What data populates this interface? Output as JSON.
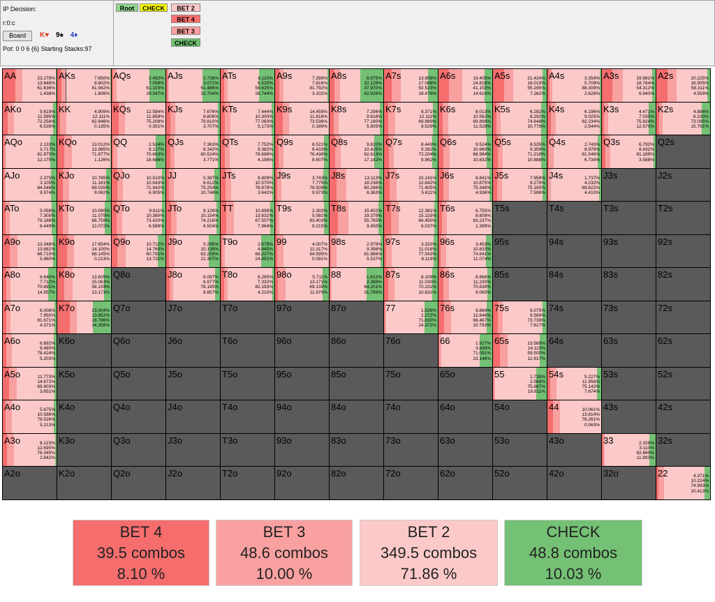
{
  "info": {
    "title": "IP Decision:",
    "node": "r:0:c",
    "board_label": "Board",
    "cards": [
      {
        "rank": "K",
        "suit": "♥",
        "color": "#e03a1c"
      },
      {
        "rank": "9",
        "suit": "♠",
        "color": "#000000"
      },
      {
        "rank": "4",
        "suit": "♦",
        "color": "#1c3fbf"
      }
    ],
    "pot_line": "Pot: 0 0 6 (6) Starting Stacks:97"
  },
  "tree": [
    {
      "label": "Root",
      "color": "#92d892"
    },
    {
      "label": "CHECK",
      "color": "#ffff00"
    },
    {
      "label": "BET 2",
      "color": "#fbc8c8"
    },
    {
      "label": "BET 4",
      "color": "#ff6f6f"
    },
    {
      "label": "BET 3",
      "color": "#ff9f9f"
    },
    {
      "label": "CHECK",
      "color": "#6cc36c"
    }
  ],
  "colors": {
    "bet4": "#f56d6d",
    "bet3": "#f9a0a0",
    "bet2": "#fcc9c9",
    "check": "#74c074",
    "empty": "#5a5a5a"
  },
  "grid_rows": [
    [
      "AA",
      "AKs",
      "AQs",
      "AJs",
      "ATs",
      "A9s",
      "A8s",
      "A7s",
      "A6s",
      "A5s",
      "A4s",
      "A3s",
      "A2s"
    ],
    [
      "AKo",
      "KK",
      "KQs",
      "KJs",
      "KTs",
      "K9s",
      "K8s",
      "K7s",
      "K6s",
      "K5s",
      "K4s",
      "K3s",
      "K2s"
    ],
    [
      "AQo",
      "KQo",
      "QQ",
      "QJs",
      "QTs",
      "Q9s",
      "Q8s",
      "Q7s",
      "Q6s",
      "Q5s",
      "Q4s",
      "Q3s",
      "Q2s"
    ],
    [
      "AJo",
      "KJo",
      "QJo",
      "JJ",
      "JTs",
      "J9s",
      "J8s",
      "J7s",
      "J6s",
      "J5s",
      "J4s",
      "J3s",
      "J2s"
    ],
    [
      "ATo",
      "KTo",
      "QTo",
      "JTo",
      "TT",
      "T9s",
      "T8s",
      "T7s",
      "T6s",
      "T5s",
      "T4s",
      "T3s",
      "T2s"
    ],
    [
      "A9o",
      "K9o",
      "Q9o",
      "J9o",
      "T9o",
      "99",
      "98s",
      "97s",
      "96s",
      "95s",
      "94s",
      "93s",
      "92s"
    ],
    [
      "A8o",
      "K8o",
      "Q8o",
      "J8o",
      "T8o",
      "98o",
      "88",
      "87s",
      "86s",
      "85s",
      "84s",
      "83s",
      "82s"
    ],
    [
      "A7o",
      "K7o",
      "Q7o",
      "J7o",
      "T7o",
      "97o",
      "87o",
      "77",
      "76s",
      "75s",
      "74s",
      "73s",
      "72s"
    ],
    [
      "A6o",
      "K6o",
      "Q6o",
      "J6o",
      "T6o",
      "96o",
      "86o",
      "76o",
      "66",
      "65s",
      "64s",
      "63s",
      "62s"
    ],
    [
      "A5o",
      "K5o",
      "Q5o",
      "J5o",
      "T5o",
      "95o",
      "85o",
      "75o",
      "65o",
      "55",
      "54s",
      "53s",
      "52s"
    ],
    [
      "A4o",
      "K4o",
      "Q4o",
      "J4o",
      "T4o",
      "94o",
      "84o",
      "74o",
      "64o",
      "54o",
      "44",
      "43s",
      "42s"
    ],
    [
      "A3o",
      "K3o",
      "Q3o",
      "J3o",
      "T3o",
      "93o",
      "83o",
      "73o",
      "63o",
      "53o",
      "43o",
      "33",
      "32s"
    ],
    [
      "A2o",
      "K2o",
      "Q2o",
      "J2o",
      "T2o",
      "92o",
      "82o",
      "72o",
      "62o",
      "52o",
      "42o",
      "32o",
      "22"
    ]
  ],
  "hands": {
    "AA": [
      "23.278%",
      "13.648%",
      "61.636%",
      "1.438%"
    ],
    "AKs": [
      "7.650%",
      "8.602%",
      "81.942%",
      "1.806%"
    ],
    "AQs": [
      "2.492%",
      "7.058%",
      "61.103%",
      "29.347%"
    ],
    "AJs": [
      "2.738%",
      "3.072%",
      "61.486%",
      "32.704%"
    ],
    "ATs": [
      "6.110%",
      "6.520%",
      "58.625%",
      "28.744%"
    ],
    "A9s": [
      "7.289%",
      "7.816%",
      "81.792%",
      "3.102%"
    ],
    "A8s": [
      "8.975%",
      "10.129%",
      "37.970%",
      "42.926%"
    ],
    "A7s": [
      "13.909%",
      "17.088%",
      "50.523%",
      "18.479%"
    ],
    "A6s": [
      "19.405%",
      "24.828%",
      "41.153%",
      "14.614%"
    ],
    "A5s": [
      "21.424%",
      "16.019%",
      "55.295%",
      "7.262%"
    ],
    "A4s": [
      "3.354%",
      "5.709%",
      "88.309%",
      "2.628%"
    ],
    "A3s": [
      "19.981%",
      "18.764%",
      "54.312%",
      "6.943%"
    ],
    "A2s": [
      "20.225%",
      "16.905%",
      "58.311%",
      "4.559%"
    ],
    "AKo": [
      "9.619%",
      "11.595%",
      "72.258%",
      "6.528%"
    ],
    "KK": [
      "4.909%",
      "12.111%",
      "82.846%",
      "0.135%"
    ],
    "KQs": [
      "12.584%",
      "11.858%",
      "75.208%",
      "0.351%"
    ],
    "KJs": [
      "7.676%",
      "8.808%",
      "79.810%",
      "3.707%"
    ],
    "KTs": [
      "7.444%",
      "10.300%",
      "77.083%",
      "5.173%"
    ],
    "K9s": [
      "14.459%",
      "11.816%",
      "73.536%",
      "0.189%"
    ],
    "K8s": [
      "7.296%",
      "9.618%",
      "77.180%",
      "5.905%"
    ],
    "K7s": [
      "8.371%",
      "12.111%",
      "69.989%",
      "9.529%"
    ],
    "K6s": [
      "8.013%",
      "10.562%",
      "69.898%",
      "11.528%"
    ],
    "K5s": [
      "6.282%",
      "8.292%",
      "74.648%",
      "10.778%"
    ],
    "K4s": [
      "6.196%",
      "9.025%",
      "82.234%",
      "2.544%"
    ],
    "K3s": [
      "4.471%",
      "7.035%",
      "75.924%",
      "12.570%"
    ],
    "K2s": [
      "4.884%",
      "6.230%",
      "73.095%",
      "15.791%"
    ],
    "AQo": [
      "2.133%",
      "3.717%",
      "81.975%",
      "12.175%"
    ],
    "KQo": [
      "13.012%",
      "13.985%",
      "71.877%",
      "1.126%"
    ],
    "QQ": [
      "2.524%",
      "8.127%",
      "70.663%",
      "18.686%"
    ],
    "QJs": [
      "7.363%",
      "8.342%",
      "80.524%",
      "3.771%"
    ],
    "QTs": [
      "7.752%",
      "9.382%",
      "78.688%",
      "4.198%"
    ],
    "Q9s": [
      "6.521%",
      "8.433%",
      "76.438%",
      "8.607%"
    ],
    "Q8s": [
      "9.820%",
      "10.425%",
      "62.613%",
      "17.142%"
    ],
    "Q7s": [
      "8.443%",
      "9.392%",
      "72.204%",
      "9.962%"
    ],
    "Q6s": [
      "9.524%",
      "10.660%",
      "68.984%",
      "10.832%"
    ],
    "Q5s": [
      "8.535%",
      "9.358%",
      "71.218%",
      "10.888%"
    ],
    "Q4s": [
      "2.743%",
      "8.976%",
      "81.546%",
      "6.734%"
    ],
    "Q3s": [
      "6.792%",
      "8.432%",
      "81.189%",
      "3.588%"
    ],
    "AJo": [
      "2.375%",
      "3.105%",
      "84.546%",
      "9.974%"
    ],
    "KJo": [
      "10.785%",
      "11.181%",
      "69.035%",
      "9.062%"
    ],
    "QJo": [
      "10.510%",
      "10.643%",
      "71.942%",
      "6.905%"
    ],
    "JJ": [
      "5.387%",
      "8.612%",
      "75.254%",
      "10.748%"
    ],
    "JTs": [
      "8.809%",
      "10.570%",
      "76.978%",
      "3.642%"
    ],
    "J9s": [
      "3.743%",
      "7.775%",
      "78.509%",
      "9.973%"
    ],
    "J8s": [
      "13.113%",
      "18.238%",
      "60.286%",
      "8.363%"
    ],
    "J7s": [
      "10.141%",
      "12.842%",
      "71.405%",
      "5.611%"
    ],
    "J6s": [
      "8.841%",
      "10.875%",
      "75.348%",
      "4.936%"
    ],
    "J5s": [
      "7.958%",
      "9.279%",
      "75.165%",
      "7.598%"
    ],
    "J4s": [
      "1.737%",
      "4.232%",
      "89.622%",
      "4.410%"
    ],
    "ATo": [
      "5.058%",
      "7.305%",
      "79.188%",
      "8.449%"
    ],
    "KTo": [
      "10.090%",
      "11.079%",
      "66.759%",
      "12.072%"
    ],
    "QTo": [
      "9.611%",
      "10.380%",
      "73.420%",
      "6.589%"
    ],
    "JTo": [
      "9.126%",
      "10.154%",
      "74.216%",
      "6.504%"
    ],
    "TT": [
      "10.898%",
      "13.632%",
      "67.507%",
      "7.964%"
    ],
    "T9s": [
      "2.302%",
      "5.081%",
      "83.403%",
      "9.215%"
    ],
    "T8s": [
      "15.402%",
      "19.379%",
      "55.765%",
      "9.455%"
    ],
    "T7s": [
      "12.381%",
      "15.133%",
      "66.450%",
      "6.037%"
    ],
    "T6s": [
      "6.755%",
      "8.609%",
      "83.237%",
      "1.399%"
    ],
    "A9o": [
      "13.348%",
      "13.682%",
      "66.710%",
      "5.960%"
    ],
    "K9o": [
      "17.654%",
      "14.100%",
      "68.145%",
      "0.213%"
    ],
    "Q9o": [
      "10.712%",
      "14.765%",
      "60.791%",
      "13.731%"
    ],
    "J9o": [
      "5.296%",
      "10.139%",
      "63.259%",
      "21.307%"
    ],
    "T9o": [
      "2.679%",
      "4.645%",
      "68.227%",
      "24.451%"
    ],
    "99": [
      "4.007%",
      "11.317%",
      "84.595%",
      "0.081%"
    ],
    "98s": [
      "2.979%",
      "9.398%",
      "81.886%",
      "5.537%"
    ],
    "97s": [
      "3.320%",
      "11.018%",
      "77.543%",
      "8.119%"
    ],
    "96s": [
      "3.453%",
      "10.833%",
      "74.641%",
      "11.074%"
    ],
    "A8o": [
      "6.640%",
      "7.712%",
      "70.691%",
      "14.957%"
    ],
    "K8o": [
      "13.605%",
      "15.063%",
      "58.159%",
      "13.173%"
    ],
    "J8o": [
      "6.087%",
      "6.977%",
      "78.185%",
      "8.857%"
    ],
    "T8o": [
      "6.265%",
      "7.332%",
      "82.193%",
      "4.210%"
    ],
    "98o": [
      "5.711%",
      "13.171%",
      "69.139%",
      "11.979%"
    ],
    "88": [
      "1.612%",
      "2.388%",
      "64.201%",
      "31.799%"
    ],
    "87s": [
      "8.109%",
      "11.030%",
      "70.231%",
      "10.631%"
    ],
    "86s": [
      "8.866%",
      "11.230%",
      "70.839%",
      "9.065%"
    ],
    "A7o": [
      "6.008%",
      "7.950%",
      "81.671%",
      "4.371%"
    ],
    "K7o": [
      "23.004%",
      "13.852%",
      "28.786%",
      "34.358%"
    ],
    "77": [
      "1.526%",
      "2.272%",
      "71.830%",
      "24.372%"
    ],
    "76s": [
      "9.894%",
      "12.846%",
      "66.467%",
      "10.793%"
    ],
    "75s": [
      "9.075%",
      "9.569%",
      "73.739%",
      "7.617%"
    ],
    "A6o": [
      "6.892%",
      "9.480%",
      "78.424%",
      "5.203%"
    ],
    "66": [
      "1.927%",
      "3.836%",
      "71.091%",
      "23.146%"
    ],
    "65s": [
      "13.569%",
      "14.115%",
      "59.500%",
      "12.817%"
    ],
    "A5o": [
      "11.773%",
      "14.672%",
      "69.903%",
      "3.651%"
    ],
    "55": [
      "1.735%",
      "2.568%",
      "75.887%",
      "19.811%"
    ],
    "54s": [
      "5.227%",
      "11.956%",
      "75.142%",
      "7.674%"
    ],
    "A4o": [
      "5.675%",
      "10.586%",
      "78.526%",
      "5.213%"
    ],
    "44": [
      "10.061%",
      "13.614%",
      "76.261%",
      "0.063%"
    ],
    "A3o": [
      "8.123%",
      "12.690%",
      "76.345%",
      "2.842%"
    ],
    "33": [
      "2.328%",
      "3.110%",
      "82.669%",
      "11.893%"
    ],
    "22": [
      "4.371%",
      "10.224%",
      "74.993%",
      "10.413%"
    ]
  },
  "legend": [
    {
      "key": "bet4",
      "name": "BET 4",
      "combos": "39.5 combos",
      "pct": "8.10 %"
    },
    {
      "key": "bet3",
      "name": "BET 3",
      "combos": "48.6 combos",
      "pct": "10.00 %"
    },
    {
      "key": "bet2",
      "name": "BET 2",
      "combos": "349.5 combos",
      "pct": "71.86 %"
    },
    {
      "key": "check",
      "name": "CHECK",
      "combos": "48.8 combos",
      "pct": "10.03 %"
    }
  ]
}
